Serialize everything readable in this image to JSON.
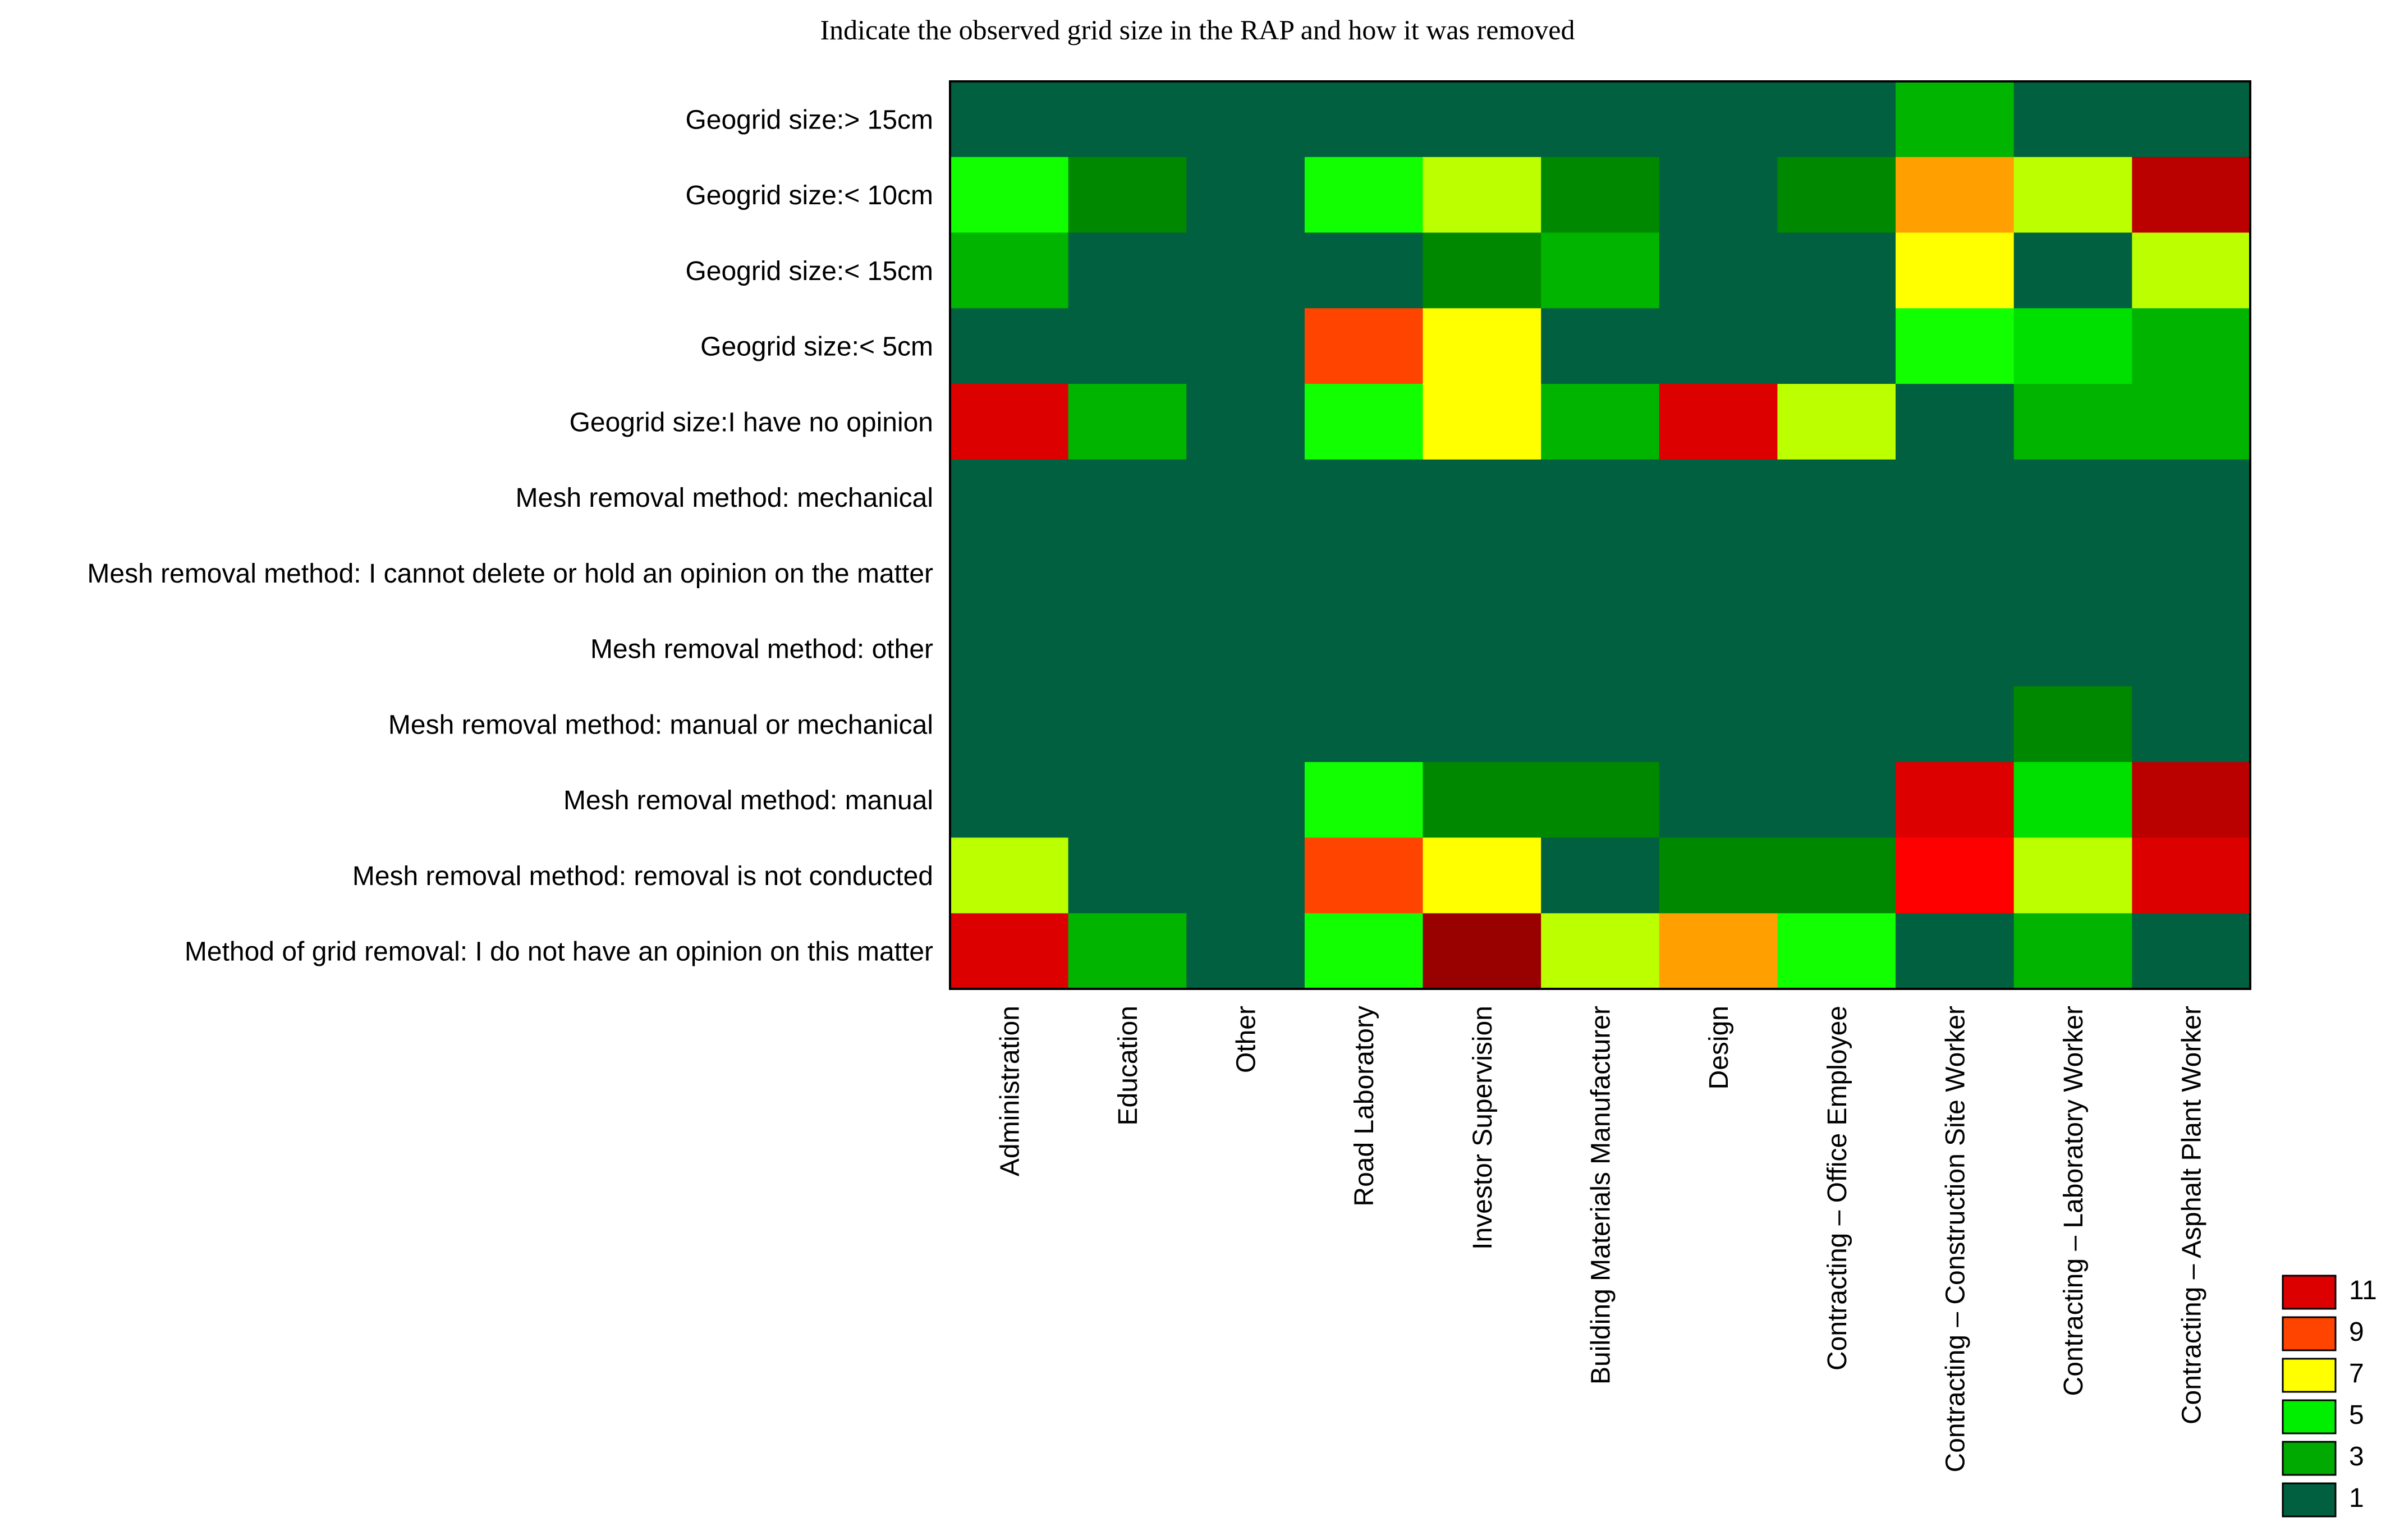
{
  "chart_data": {
    "type": "heatmap",
    "title": "Indicate the observed grid size in the RAP and how it was removed",
    "xlabel": "",
    "ylabel": "",
    "rows": [
      "Geogrid size:> 15cm",
      "Geogrid size:< 10cm",
      "Geogrid size:< 15cm",
      "Geogrid size:< 5cm",
      "Geogrid size:I have no opinion",
      "Mesh removal method: mechanical",
      "Mesh removal method: I cannot delete or hold an opinion on the matter",
      "Mesh removal method: other",
      "Mesh removal method: manual or mechanical",
      "Mesh removal method: manual",
      "Mesh removal method: removal is not conducted",
      "Method of grid removal: I do not have an opinion on this matter"
    ],
    "columns": [
      "Administration",
      "Education",
      "Other",
      "Road Laboratory",
      "Investor Supervision",
      "Building Materials Manufacturer",
      "Design",
      "Contracting – Office Employee",
      "Contracting – Construction Site Worker",
      "Contracting – Laboratory Worker",
      "Contracting – Asphalt Plant Worker"
    ],
    "values": [
      [
        1,
        1,
        1,
        1,
        1,
        1,
        1,
        1,
        3,
        1,
        1
      ],
      [
        5,
        2,
        1,
        5,
        6,
        2,
        1,
        2,
        8,
        6,
        12
      ],
      [
        3,
        1,
        1,
        1,
        2,
        3,
        1,
        1,
        7,
        1,
        6
      ],
      [
        1,
        1,
        1,
        9,
        7,
        1,
        1,
        1,
        5,
        4,
        3
      ],
      [
        11,
        3,
        1,
        5,
        7,
        3,
        11,
        6,
        1,
        3,
        3
      ],
      [
        1,
        1,
        1,
        1,
        1,
        1,
        1,
        1,
        1,
        1,
        1
      ],
      [
        1,
        1,
        1,
        1,
        1,
        1,
        1,
        1,
        1,
        1,
        1
      ],
      [
        1,
        1,
        1,
        1,
        1,
        1,
        1,
        1,
        1,
        1,
        1
      ],
      [
        1,
        1,
        1,
        1,
        1,
        1,
        1,
        1,
        1,
        2,
        1
      ],
      [
        1,
        1,
        1,
        5,
        2,
        2,
        1,
        1,
        11,
        4,
        12
      ],
      [
        6,
        1,
        1,
        9,
        7,
        1,
        2,
        2,
        10,
        6,
        11
      ],
      [
        11,
        3,
        1,
        5,
        13,
        6,
        8,
        5,
        1,
        3,
        1
      ]
    ],
    "legend": {
      "labels": [
        "11",
        "9",
        "7",
        "5",
        "3",
        "1"
      ],
      "colors": [
        "#dd0000",
        "#ff4400",
        "#ffff00",
        "#00ee00",
        "#00aa00",
        "#006040"
      ]
    },
    "color_scale": [
      {
        "value": 1,
        "color": "#006040"
      },
      {
        "value": 2,
        "color": "#008800"
      },
      {
        "value": 3,
        "color": "#00b400"
      },
      {
        "value": 4,
        "color": "#00e000"
      },
      {
        "value": 5,
        "color": "#11ff00"
      },
      {
        "value": 6,
        "color": "#bbff00"
      },
      {
        "value": 7,
        "color": "#ffff00"
      },
      {
        "value": 8,
        "color": "#ffa000"
      },
      {
        "value": 9,
        "color": "#ff4400"
      },
      {
        "value": 10,
        "color": "#ff0000"
      },
      {
        "value": 11,
        "color": "#dd0000"
      },
      {
        "value": 12,
        "color": "#bb0000"
      },
      {
        "value": 13,
        "color": "#990000"
      }
    ],
    "legend_placement": "bottom-right",
    "grid": false
  }
}
